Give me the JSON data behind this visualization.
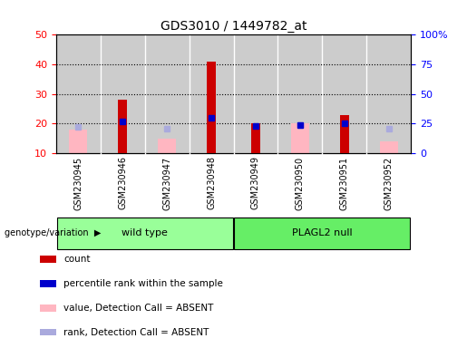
{
  "title": "GDS3010 / 1449782_at",
  "samples": [
    "GSM230945",
    "GSM230946",
    "GSM230947",
    "GSM230948",
    "GSM230949",
    "GSM230950",
    "GSM230951",
    "GSM230952"
  ],
  "groups": [
    "wild type",
    "wild type",
    "wild type",
    "wild type",
    "PLAGL2 null",
    "PLAGL2 null",
    "PLAGL2 null",
    "PLAGL2 null"
  ],
  "count": [
    null,
    28,
    null,
    41,
    20,
    null,
    23,
    null
  ],
  "percentile_rank": [
    null,
    27,
    null,
    30,
    23,
    24,
    25,
    null
  ],
  "absent_value": [
    18,
    null,
    15,
    null,
    null,
    20,
    null,
    14
  ],
  "absent_rank": [
    22,
    null,
    21,
    null,
    null,
    24,
    null,
    21
  ],
  "left_ylim": [
    10,
    50
  ],
  "right_ylim": [
    0,
    100
  ],
  "left_yticks": [
    10,
    20,
    30,
    40,
    50
  ],
  "right_yticks": [
    0,
    25,
    50,
    75,
    100
  ],
  "right_yticklabels": [
    "0",
    "25",
    "50",
    "75",
    "100%"
  ],
  "bar_color": "#cc0000",
  "pink_color": "#ffb6c1",
  "blue_color": "#0000cc",
  "lightblue_color": "#aaaadd",
  "wildtype_color": "#99ff99",
  "plagl2_color": "#66ee66",
  "bg_color": "#cccccc",
  "legend_items": [
    {
      "label": "count",
      "color": "#cc0000"
    },
    {
      "label": "percentile rank within the sample",
      "color": "#0000cc"
    },
    {
      "label": "value, Detection Call = ABSENT",
      "color": "#ffb6c1"
    },
    {
      "label": "rank, Detection Call = ABSENT",
      "color": "#aaaadd"
    }
  ]
}
